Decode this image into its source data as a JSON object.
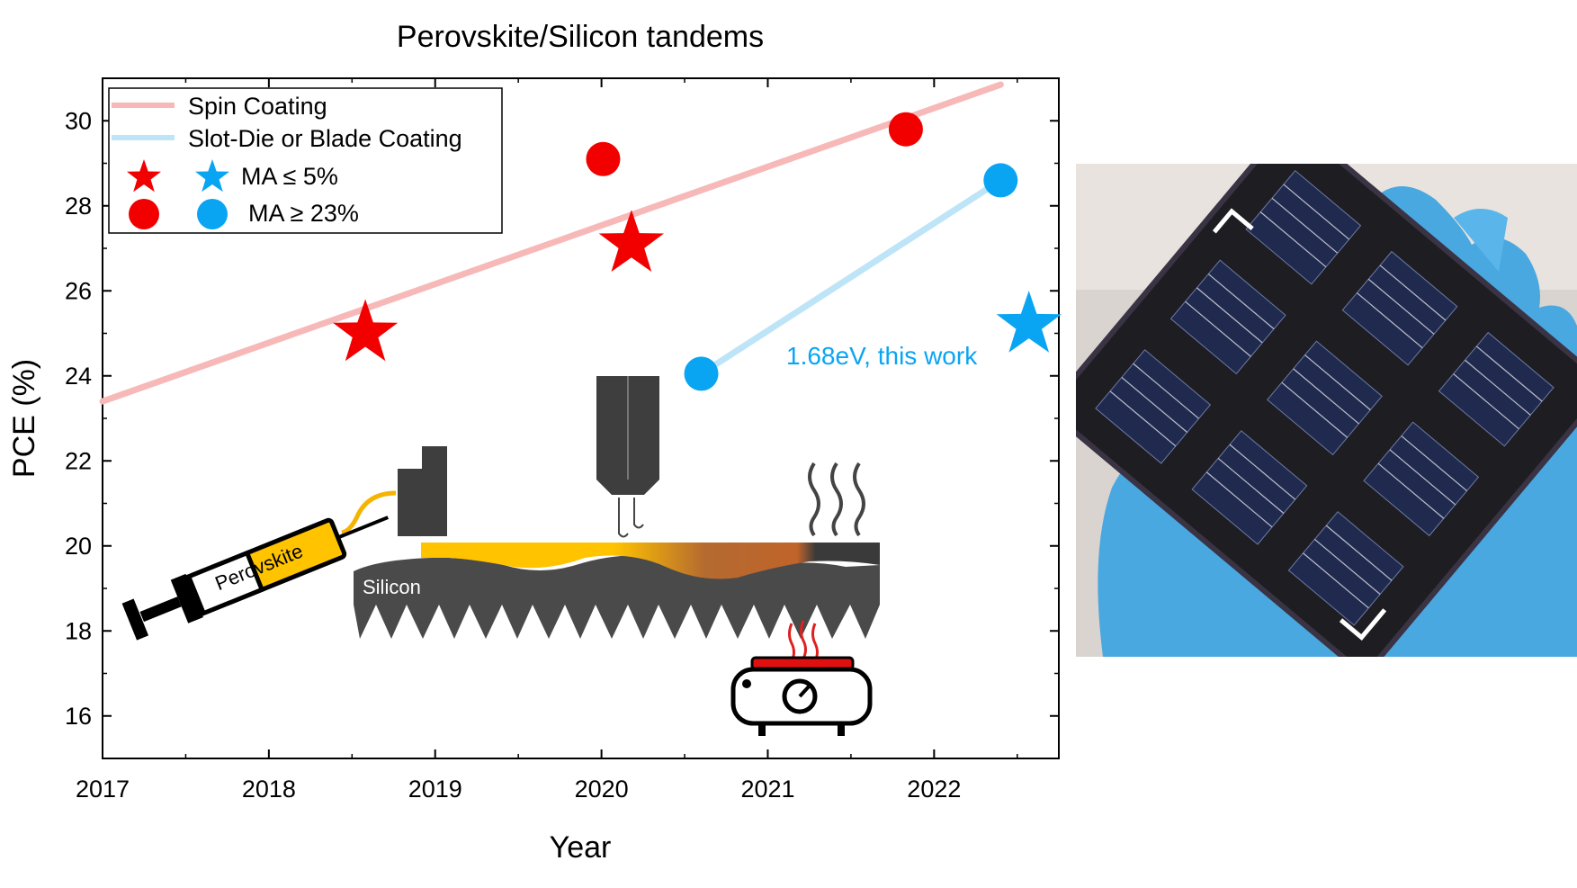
{
  "chart_data": {
    "type": "scatter",
    "title": "Perovskite/Silicon tandems",
    "xlabel": "Year",
    "ylabel": "PCE (%)",
    "xlim": [
      2017,
      2022.75
    ],
    "ylim": [
      15,
      31
    ],
    "xticks": [
      2017,
      2018,
      2019,
      2020,
      2021,
      2022
    ],
    "yticks": [
      16,
      18,
      20,
      22,
      24,
      26,
      28,
      30
    ],
    "grid": false,
    "legend_position": "top-left",
    "legend": [
      {
        "label": "Spin Coating",
        "kind": "line",
        "color": "#f7b8b8"
      },
      {
        "label": "Slot-Die or Blade Coating",
        "kind": "line",
        "color": "#bde4f7"
      },
      {
        "label": "MA ≤ 5%",
        "kind": "star",
        "colors": [
          "#f20000",
          "#0aa5f2"
        ]
      },
      {
        "label": "MA ≥ 23%",
        "kind": "circle",
        "colors": [
          "#f20000",
          "#0aa5f2"
        ]
      }
    ],
    "trendlines": [
      {
        "name": "Spin Coating",
        "color": "#f7b8b8",
        "x": [
          2017,
          2022.4
        ],
        "y": [
          23.4,
          30.85
        ]
      },
      {
        "name": "Slot-Die or Blade Coating",
        "color": "#bde4f7",
        "x": [
          2020.6,
          2022.4
        ],
        "y": [
          24.05,
          28.6
        ]
      }
    ],
    "points": [
      {
        "x": 2018.58,
        "y": 25.0,
        "marker": "star",
        "color": "#f20000"
      },
      {
        "x": 2020.18,
        "y": 27.1,
        "marker": "star",
        "color": "#f20000"
      },
      {
        "x": 2022.57,
        "y": 25.2,
        "marker": "star",
        "color": "#0aa5f2"
      },
      {
        "x": 2020.01,
        "y": 29.1,
        "marker": "circle",
        "color": "#f20000"
      },
      {
        "x": 2021.83,
        "y": 29.8,
        "marker": "circle",
        "color": "#f20000"
      },
      {
        "x": 2020.6,
        "y": 24.05,
        "marker": "circle",
        "color": "#0aa5f2"
      },
      {
        "x": 2022.4,
        "y": 28.6,
        "marker": "circle",
        "color": "#0aa5f2"
      }
    ],
    "annotations": [
      {
        "text": "1.68eV, this work",
        "color": "#0aa5f2"
      }
    ]
  },
  "illustration": {
    "syringe_label": "Perovskite",
    "substrate_label": "Silicon"
  }
}
